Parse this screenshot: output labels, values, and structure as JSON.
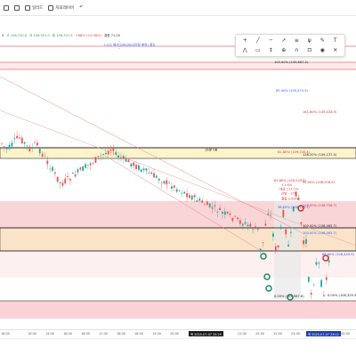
{
  "toolbar": {
    "items": [
      "일러드",
      "지표레이어"
    ],
    "undo_icon": "undo-icon"
  },
  "info_line": {
    "symbol": "0",
    "values": [
      "고 108,730.0",
      "저 108,551.0",
      "종 108,701.9",
      "+88.0 (+0.08%)",
      "결합 71.05"
    ]
  },
  "drawing_tools": {
    "icons": [
      "crosshair-icon",
      "line-icon",
      "horizontal-line-icon",
      "ray-icon",
      "fib-icon",
      "pitchfork-icon",
      "brush-icon",
      "text-icon",
      "pattern-icon",
      "rectangle-icon",
      "measure-icon",
      "zoom-icon",
      "magnet-icon",
      "lock-icon",
      "eye-icon",
      "trash-icon"
    ]
  },
  "annotations": {
    "order_note": "+112 매수 108,000(만원 예치) 결산 ",
    "ob_label": "15분 OB",
    "fib_levels": [
      "100.00% (109,687.2)",
      "85.40% (109,470.9)",
      "161.80% (109,434.9)",
      "61.80% (109,235.4)",
      "138.20% (109,137.5)",
      "61.80% (109,229.8)",
      "50.00% (108,978.9)",
      "118.00% (108,756.7)",
      "38.20% (108,735.1)",
      "100.00% (108,465.7)",
      "100.00% (108,465.7)",
      "88.60% (108,449.9)",
      "0.00% (108,329.3)",
      "0.00% (107,987.6)"
    ],
    "small_notes": [
      "+1.4%",
      "대금 111.1%",
      "신방 - 174",
      "결합 2.09%"
    ]
  },
  "time_axis": {
    "ticks": [
      "18:00",
      "19:00",
      "14:00",
      "16:00",
      "16:00",
      "17:00",
      "18:00",
      "18:00",
      "19:00",
      "20:00",
      "21:00",
      "22:00",
      "22:00",
      "23:00",
      "00:00"
    ],
    "highlight_1": "목 2025-07-07  20:29",
    "highlight_2": "목 2025-07-07  23:02"
  },
  "colors": {
    "bull": "#26a69a",
    "bear": "#ef5350",
    "zone_red": "#f8d7da",
    "zone_yellow": "#fff2cc",
    "accent_blue": "#2962ff",
    "fib_red": "#d32f2f",
    "marker_green": "#1b8a6b",
    "marker_red": "#d32f2f"
  }
}
